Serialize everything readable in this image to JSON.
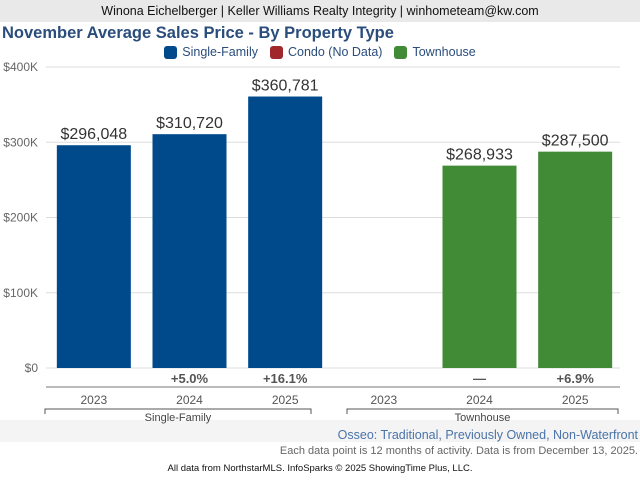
{
  "header": {
    "agent_line": "Winona Eichelberger | Keller Williams Realty Integrity | winhometeam@kw.com"
  },
  "legend": [
    {
      "label": "Single-Family",
      "color": "#004a8c"
    },
    {
      "label": "Condo (No Data)",
      "color": "#a0282b"
    },
    {
      "label": "Townhouse",
      "color": "#418a36"
    }
  ],
  "subtitle": "Osseo: Traditional, Previously Owned, Non-Waterfront",
  "note": "Each data point is 12 months of activity. Data is from December 13, 2025.",
  "footer": "All data from NorthstarMLS. InfoSparks © 2025 ShowingTime Plus, LLC.",
  "chart_data": {
    "type": "bar",
    "title": "November Average Sales Price - By Property Type",
    "ylabel": "",
    "xlabel": "",
    "ylim": [
      0,
      400000
    ],
    "y_ticks": [
      {
        "value": 0,
        "label": "$0"
      },
      {
        "value": 100000,
        "label": "$100K"
      },
      {
        "value": 200000,
        "label": "$200K"
      },
      {
        "value": 300000,
        "label": "$300K"
      },
      {
        "value": 400000,
        "label": "$400K"
      }
    ],
    "grid": true,
    "legend_position": "top-center",
    "groups": [
      {
        "name": "Single-Family",
        "color": "#004a8c",
        "categories": [
          "2023",
          "2024",
          "2025"
        ],
        "values": [
          296048,
          310720,
          360781
        ],
        "value_labels": [
          "$296,048",
          "$310,720",
          "$360,781"
        ],
        "changes": [
          "",
          "+5.0%",
          "+16.1%"
        ]
      },
      {
        "name": "Townhouse",
        "color": "#418a36",
        "categories": [
          "2023",
          "2024",
          "2025"
        ],
        "values": [
          null,
          268933,
          287500
        ],
        "value_labels": [
          "",
          "$268,933",
          "$287,500"
        ],
        "changes": [
          "",
          "—",
          "+6.9%"
        ]
      }
    ]
  }
}
